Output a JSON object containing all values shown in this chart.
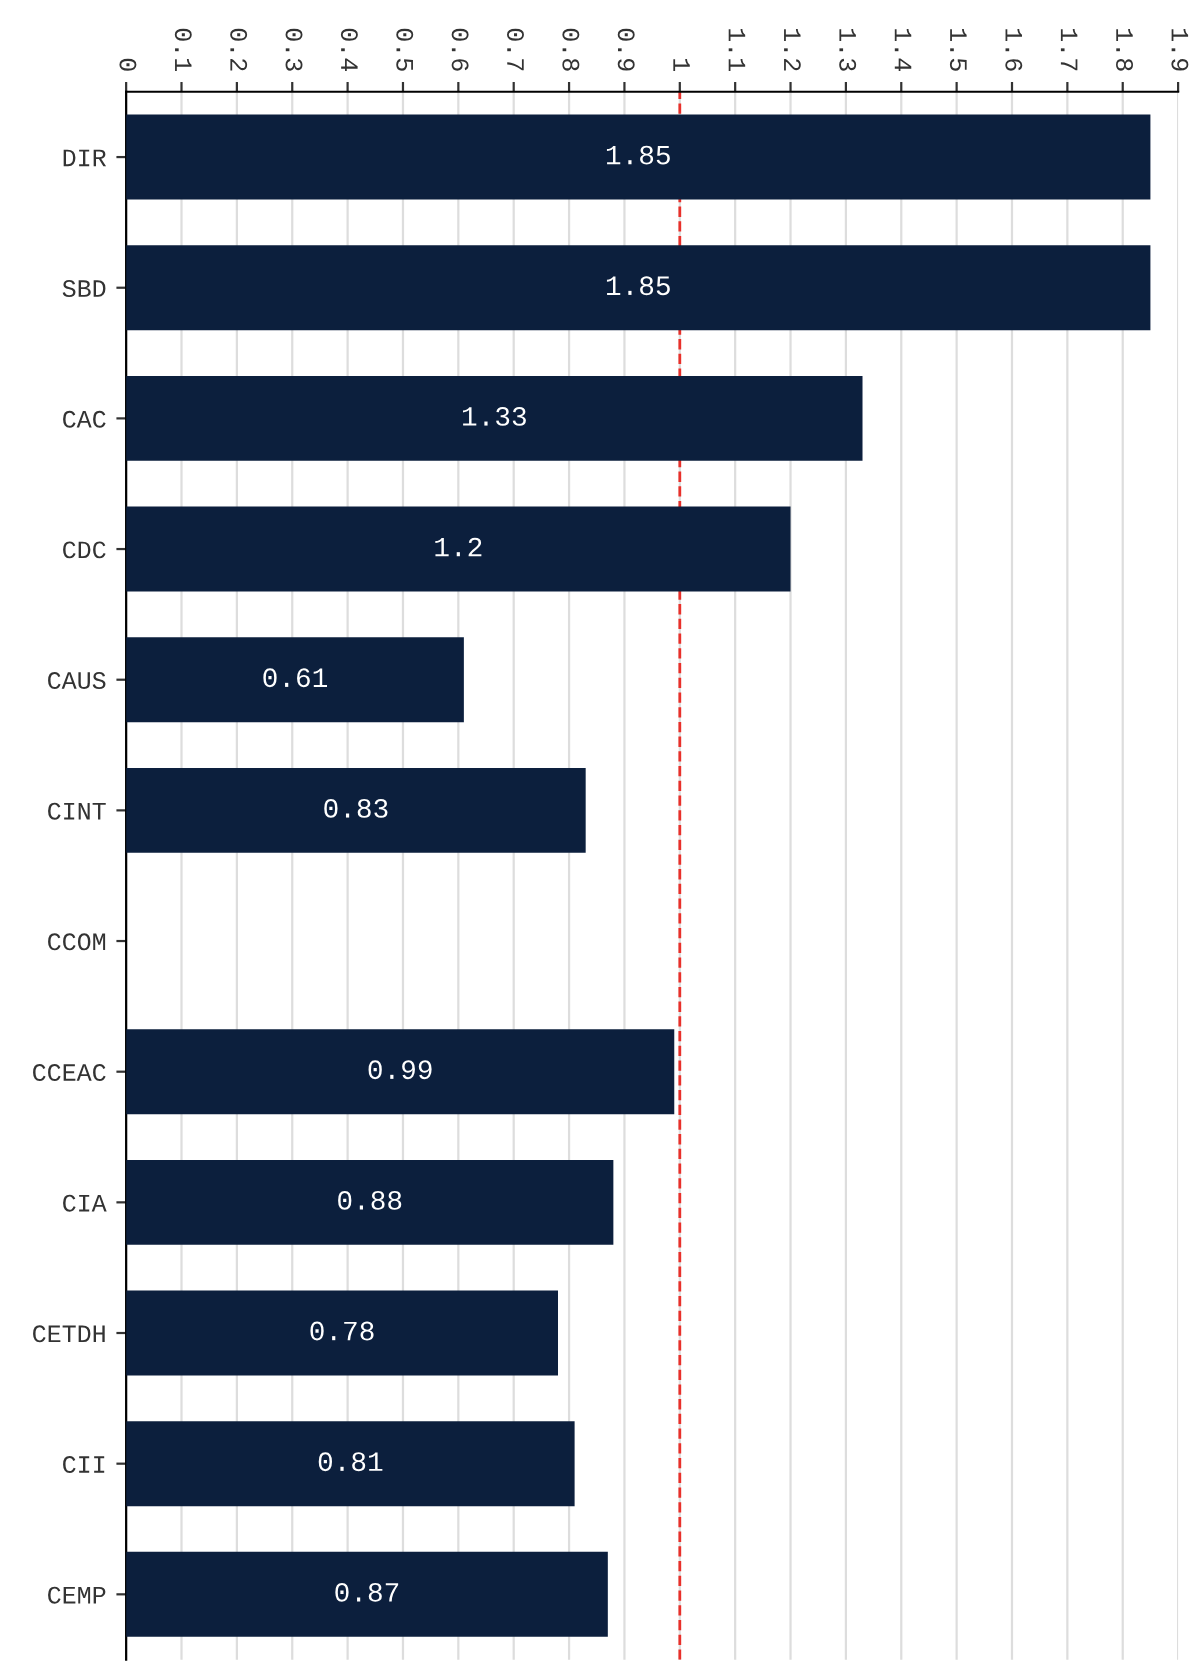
{
  "chart_data": {
    "type": "bar",
    "orientation": "horizontal",
    "categories": [
      "DIR",
      "SBD",
      "CAC",
      "CDC",
      "CAUS",
      "CINT",
      "CCOM",
      "CCEAC",
      "CIA",
      "CETDH",
      "CII",
      "CEMP"
    ],
    "values": [
      1.85,
      1.85,
      1.33,
      1.2,
      0.61,
      0.83,
      null,
      0.99,
      0.88,
      0.78,
      0.81,
      0.87
    ],
    "color": "#0c1f3d",
    "xlim": [
      0,
      1.9
    ],
    "xticks": [
      0,
      0.1,
      0.2,
      0.3,
      0.4,
      0.5,
      0.6,
      0.7,
      0.8,
      0.9,
      1,
      1.1,
      1.2,
      1.3,
      1.4,
      1.5,
      1.6,
      1.7,
      1.8,
      1.9
    ],
    "grid": "x",
    "data_labels": true,
    "ref_lines": [
      {
        "axis": "x",
        "value": 1,
        "color": "#e8302a",
        "line_style": "dashed"
      }
    ]
  }
}
